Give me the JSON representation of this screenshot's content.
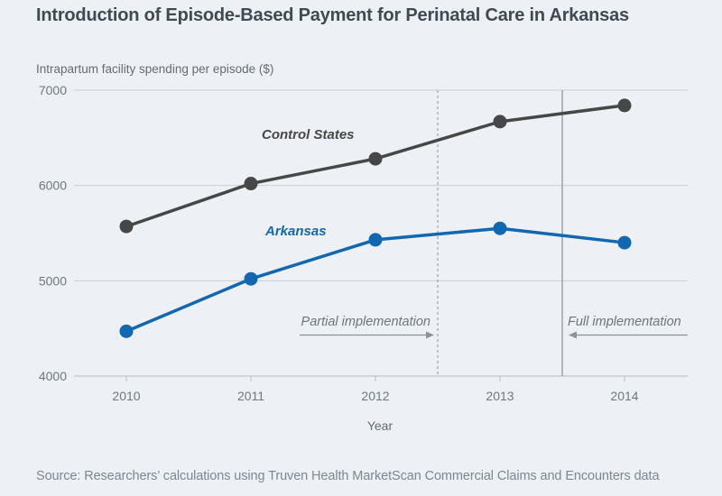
{
  "chart_data": {
    "type": "line",
    "title": "Introduction of Episode-Based Payment for Perinatal Care in Arkansas",
    "y_axis_title": "Intrapartum facility spending per episode ($)",
    "xlabel": "Year",
    "x": [
      2010,
      2011,
      2012,
      2013,
      2014
    ],
    "ylim": [
      4000,
      7000
    ],
    "yticks": [
      4000,
      5000,
      6000,
      7000
    ],
    "grid": "horizontal",
    "legend": "inline-labels",
    "series": [
      {
        "name": "Control States",
        "color": "#474747",
        "values": [
          5570,
          6020,
          6280,
          6670,
          6840
        ]
      },
      {
        "name": "Arkansas",
        "color": "#1268b0",
        "values": [
          4470,
          5020,
          5430,
          5550,
          5400
        ]
      }
    ],
    "annotations": [
      {
        "label": "Partial implementation",
        "x": 2012.5,
        "line_style": "dashed",
        "arrow_direction": "right"
      },
      {
        "label": "Full implementation",
        "x": 2013.5,
        "line_style": "solid",
        "arrow_direction": "left"
      }
    ]
  },
  "source_note": "Source: Researchers’ calculations using Truven Health MarketScan Commercial Claims and Encounters data",
  "colors": {
    "background": "#edf1f5",
    "title": "#3e4a54",
    "gridline": "#c9cfd4",
    "axis_line": "#b5bcc3",
    "axis_text": "#6e7881",
    "dashed_rule": "#8c959d",
    "solid_rule": "#99a1a8",
    "arrow": "#8a939c",
    "control_series": "#474747",
    "arkansas_series": "#1268b0"
  }
}
